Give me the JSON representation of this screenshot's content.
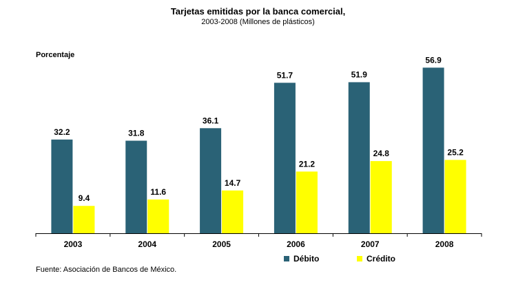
{
  "chart_data": {
    "type": "bar",
    "title": "Tarjetas emitidas por la banca comercial,",
    "subtitle": "2003-2008  (Millones de plásticos)",
    "ylabel": "Porcentaje",
    "xlabel": "",
    "categories": [
      "2003",
      "2004",
      "2005",
      "2006",
      "2007",
      "2008"
    ],
    "series": [
      {
        "name": "Débito",
        "color": "#2a6276",
        "values": [
          32.2,
          31.8,
          36.1,
          51.7,
          51.9,
          56.9
        ]
      },
      {
        "name": "Crédito",
        "color": "#ffff00",
        "values": [
          9.4,
          11.6,
          14.7,
          21.2,
          24.8,
          25.2
        ]
      }
    ],
    "ylim": [
      0,
      60
    ],
    "grid": false,
    "legend_position": "bottom",
    "source": "Fuente: Asociación de Bancos de México."
  }
}
